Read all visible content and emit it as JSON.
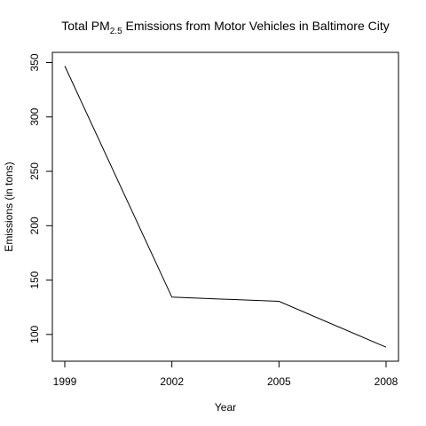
{
  "chart_data": {
    "type": "line",
    "title": {
      "prefix": "Total PM",
      "subscript": "2.5",
      "suffix": " Emissions from Motor Vehicles in Baltimore City"
    },
    "xlabel": "Year",
    "ylabel": "Emissions (in tons)",
    "x": [
      1999,
      2002,
      2005,
      2008
    ],
    "y": [
      346.82,
      134.31,
      130.43,
      88.28
    ],
    "xlim": [
      1999,
      2008
    ],
    "ylim": [
      86,
      350
    ],
    "xticks": [
      1999,
      2002,
      2005,
      2008
    ],
    "yticks": [
      100,
      150,
      200,
      250,
      300,
      350
    ],
    "line_color": "#000000",
    "grid": false,
    "legend": "none"
  }
}
